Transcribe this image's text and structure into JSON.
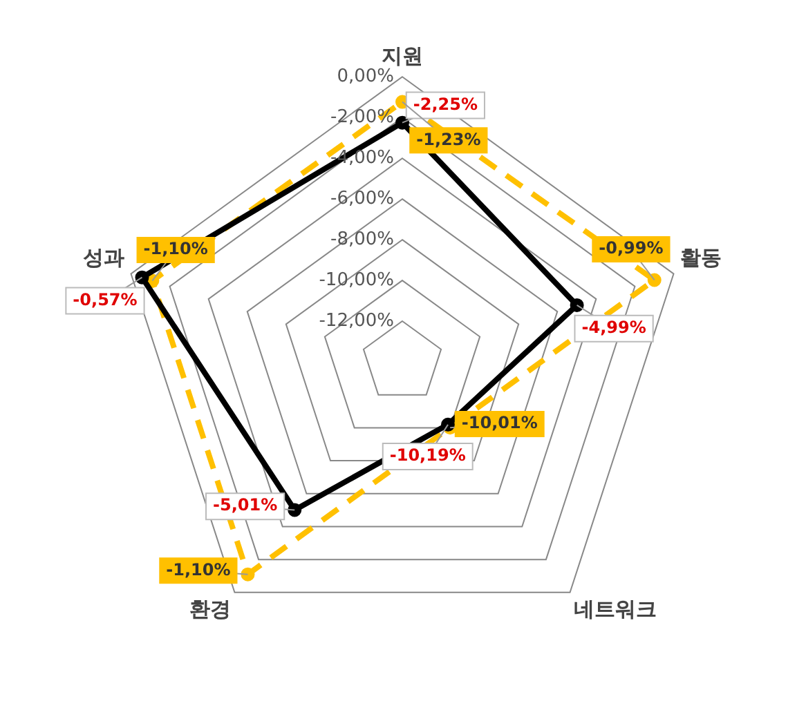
{
  "chart_data": {
    "type": "radar",
    "categories": [
      "지원",
      "활동",
      "네트워크",
      "환경",
      "성과"
    ],
    "series": [
      {
        "color": "#000000",
        "values": [
          -2.25,
          -4.99,
          -10.19,
          -5.01,
          -0.57
        ],
        "value_labels": [
          "-2,25%",
          "-4,99%",
          "-10,19%",
          "-5,01%",
          "-0,57%"
        ],
        "line_style": "solid"
      },
      {
        "color": "#ffc000",
        "values": [
          -1.23,
          -0.99,
          -10.01,
          -1.1,
          -1.1
        ],
        "value_labels": [
          "-1,23%",
          "-0,99%",
          "-10,01%",
          "-1,10%",
          "-1,10%"
        ],
        "line_style": "dashed"
      }
    ],
    "ylim": [
      -14,
      0
    ],
    "yticks": [
      {
        "value": -12,
        "label": "-12,00%"
      },
      {
        "value": -10,
        "label": "-10,00%"
      },
      {
        "value": -8,
        "label": "-8,00%"
      },
      {
        "value": -6,
        "label": "-6,00%"
      },
      {
        "value": -4,
        "label": "-4,00%"
      },
      {
        "value": -2,
        "label": "-2,00%"
      },
      {
        "value": 0,
        "label": "0,00%"
      }
    ],
    "grid": true,
    "legend": false,
    "marker": "circle"
  }
}
